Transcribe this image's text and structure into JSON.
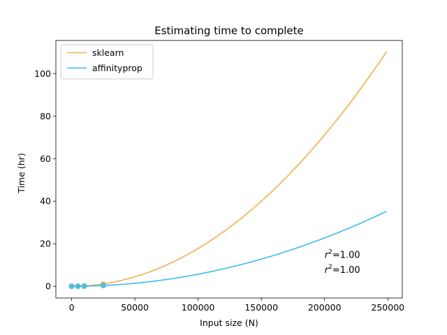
{
  "chart_data": {
    "type": "line",
    "title": "Estimating time to complete",
    "xlabel": "Input size (N)",
    "ylabel": "Time (hr)",
    "xlim": [
      -12450,
      261450
    ],
    "ylim": [
      -5.5,
      115.5
    ],
    "xticks": [
      0,
      50000,
      100000,
      150000,
      200000,
      250000
    ],
    "yticks": [
      0,
      20,
      40,
      60,
      80,
      100
    ],
    "grid": false,
    "legend_position": "upper left",
    "series": [
      {
        "name": "sklearn",
        "color": "#f0b04a",
        "fit_coefficient": 1.778e-09,
        "fit_x_range": [
          0,
          249000
        ],
        "observed_points": [
          {
            "x": 0,
            "y": 0.0
          },
          {
            "x": 5000,
            "y": 0.05
          },
          {
            "x": 10000,
            "y": 0.2
          },
          {
            "x": 25000,
            "y": 1.1
          }
        ]
      },
      {
        "name": "affinityprop",
        "color": "#38bdf0",
        "fit_coefficient": 5.68e-10,
        "fit_x_range": [
          0,
          249000
        ],
        "observed_points": [
          {
            "x": 0,
            "y": 0.0
          },
          {
            "x": 5000,
            "y": 0.01
          },
          {
            "x": 10000,
            "y": 0.06
          },
          {
            "x": 25000,
            "y": 0.35
          }
        ]
      }
    ],
    "annotations": [
      {
        "text_base": "r",
        "text_sup": "2",
        "text_rest": "=1.00",
        "x": 200000,
        "y": 15
      },
      {
        "text_base": "r",
        "text_sup": "2",
        "text_rest": "=1.00",
        "x": 200000,
        "y": 8
      }
    ]
  }
}
